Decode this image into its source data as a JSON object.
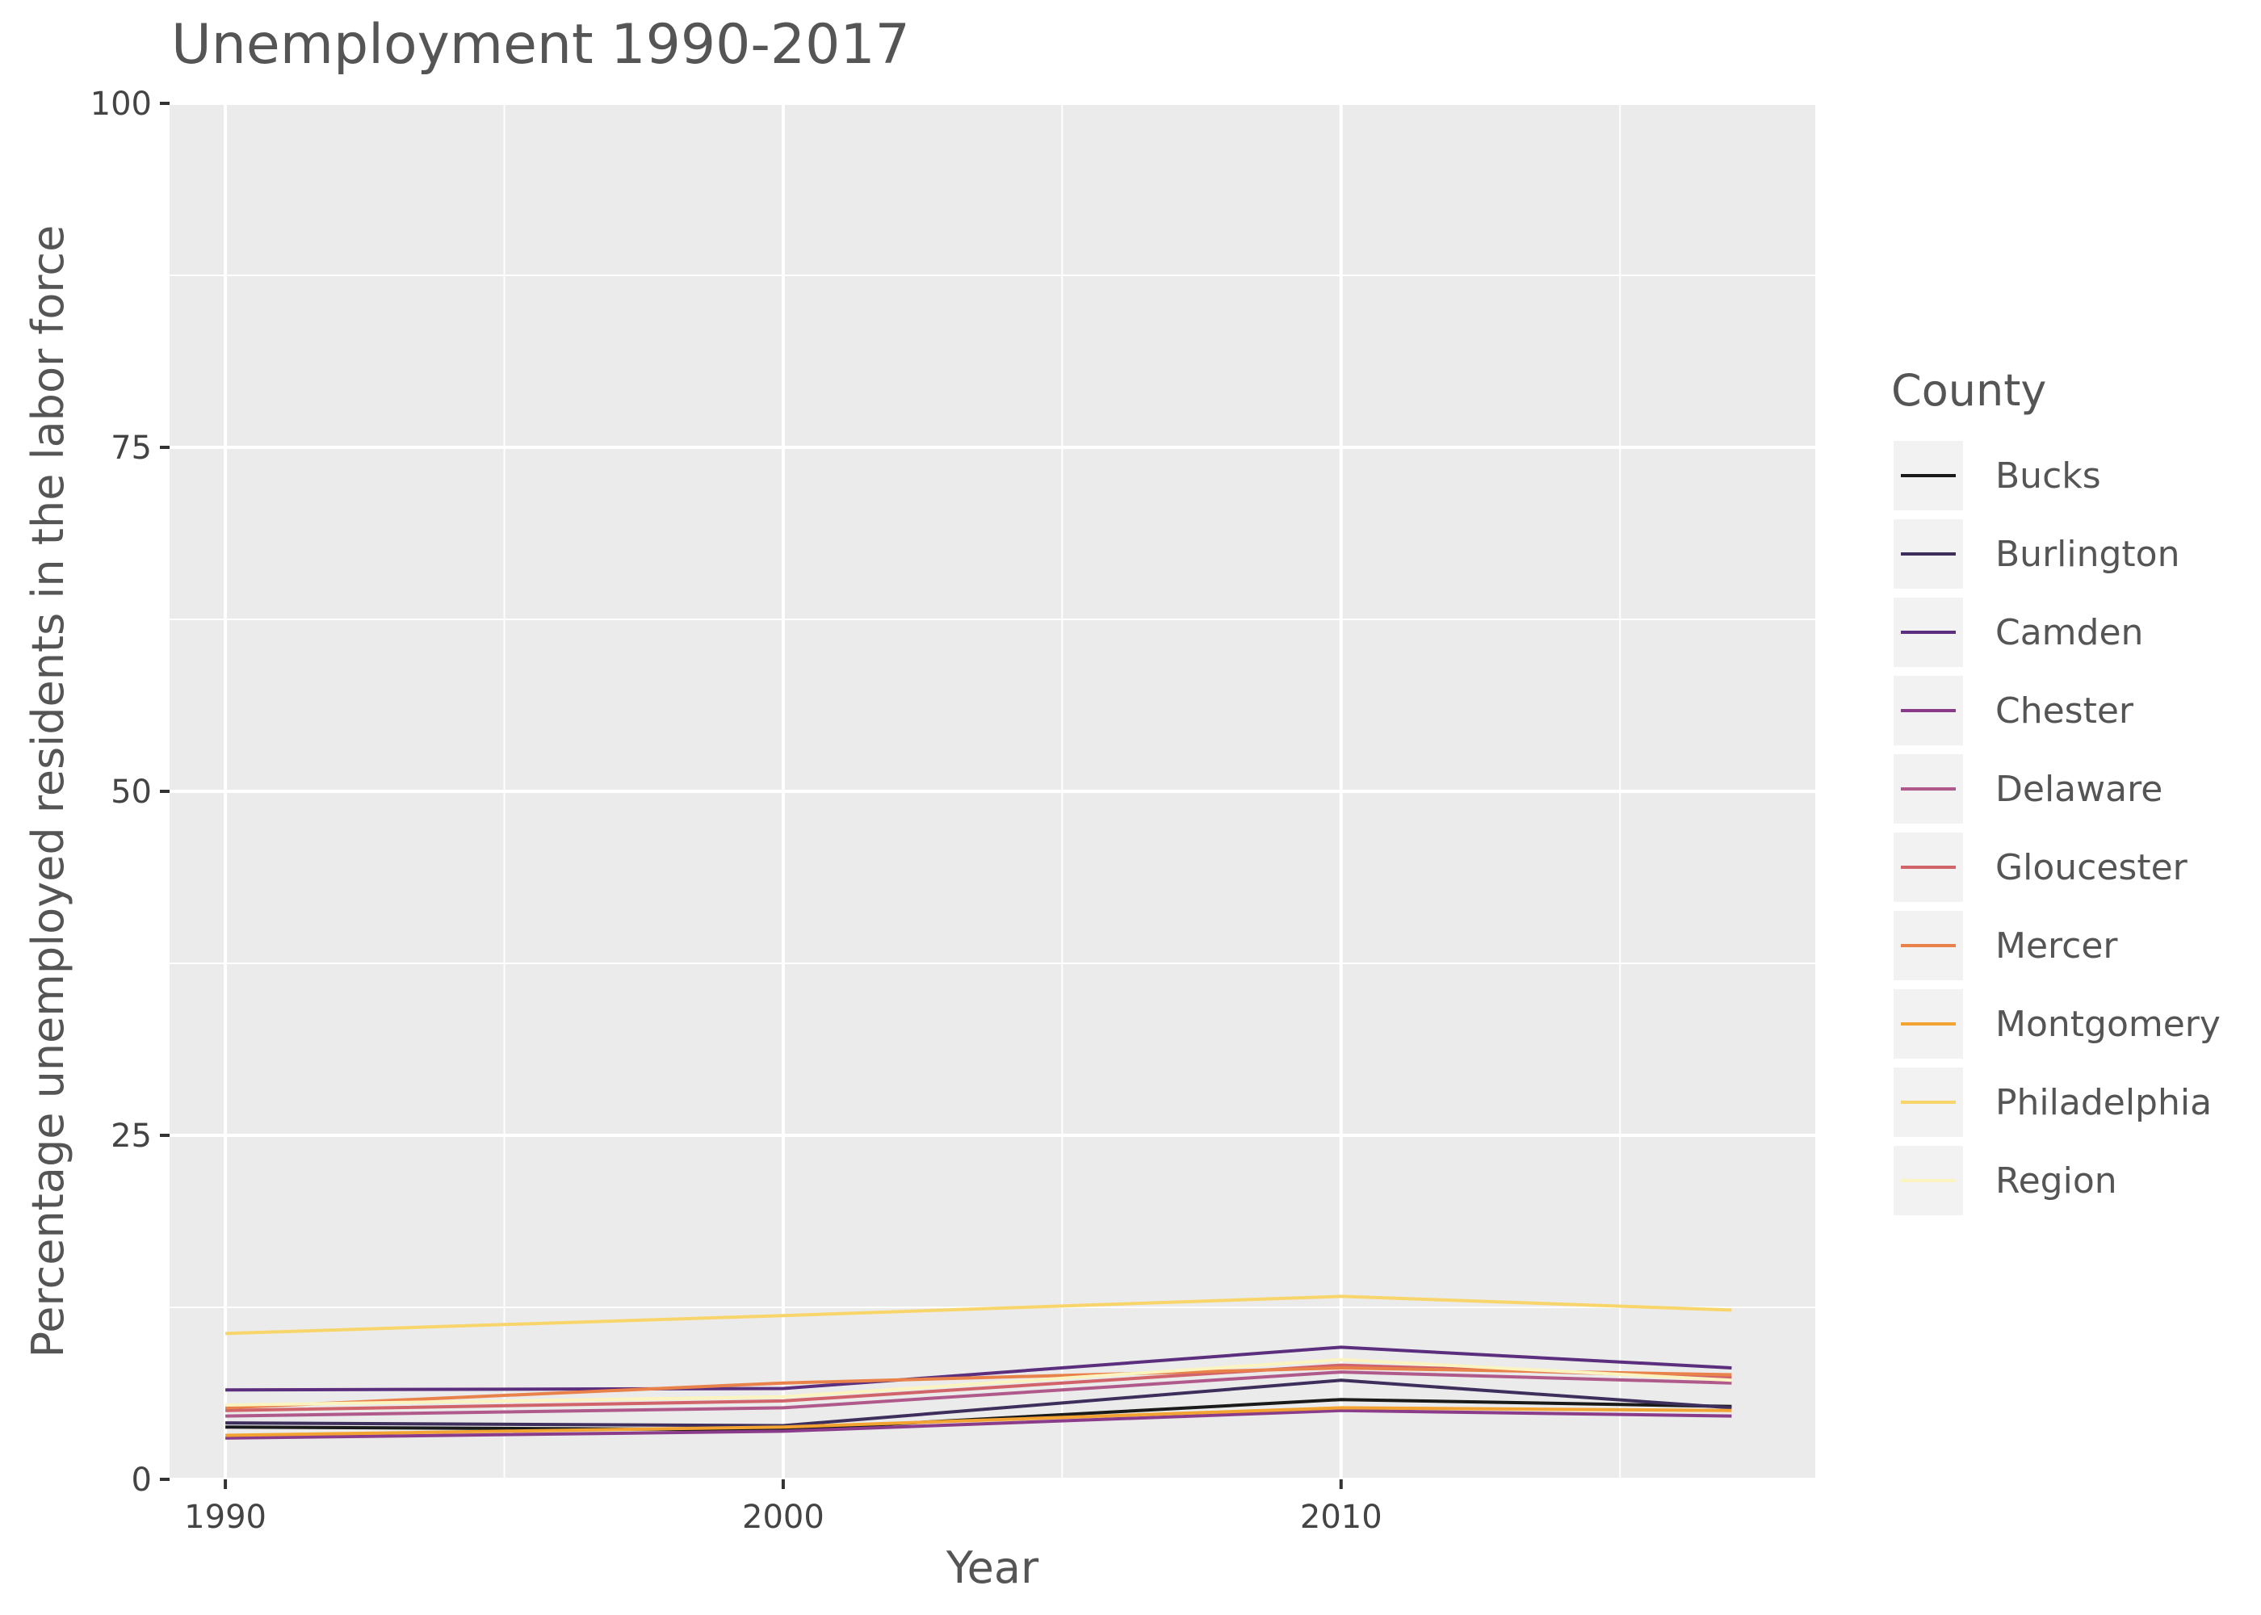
{
  "chart_data": {
    "type": "line",
    "title": "Unemployment 1990-2017",
    "xlabel": "Year",
    "ylabel": "Percentage unemployed residents in the labor force",
    "x": [
      1990,
      2000,
      2010,
      2017
    ],
    "xlim": [
      1989,
      2018.5
    ],
    "ylim": [
      0,
      100
    ],
    "x_ticks": [
      1990,
      2000,
      2010
    ],
    "y_ticks": [
      0,
      25,
      50,
      75,
      100
    ],
    "grid": true,
    "panel_background": "#EBEBEB",
    "legend": {
      "title": "County",
      "position": "right"
    },
    "series": [
      {
        "name": "Bucks",
        "color": "#1A1A1A",
        "values": [
          3.8,
          3.6,
          5.8,
          5.3
        ]
      },
      {
        "name": "Burlington",
        "color": "#3D2E5C",
        "values": [
          4.1,
          3.9,
          7.2,
          5.2
        ]
      },
      {
        "name": "Camden",
        "color": "#5C2E7E",
        "values": [
          6.5,
          6.6,
          9.6,
          8.1
        ]
      },
      {
        "name": "Chester",
        "color": "#8A3C8A",
        "values": [
          3.0,
          3.5,
          5.0,
          4.6
        ]
      },
      {
        "name": "Delaware",
        "color": "#B05A8C",
        "values": [
          4.6,
          5.2,
          7.8,
          7.0
        ]
      },
      {
        "name": "Gloucester",
        "color": "#D0646A",
        "values": [
          5.0,
          5.7,
          8.3,
          7.4
        ]
      },
      {
        "name": "Mercer",
        "color": "#E8824A",
        "values": [
          5.2,
          7.0,
          8.1,
          7.6
        ]
      },
      {
        "name": "Montgomery",
        "color": "#F2A332",
        "values": [
          3.2,
          3.8,
          5.2,
          5.0
        ]
      },
      {
        "name": "Philadelphia",
        "color": "#F8D56A",
        "values": [
          10.6,
          11.9,
          13.3,
          12.3
        ]
      },
      {
        "name": "Region",
        "color": "#FBF4C0",
        "values": [
          5.4,
          6.0,
          8.7,
          7.2
        ]
      }
    ]
  }
}
